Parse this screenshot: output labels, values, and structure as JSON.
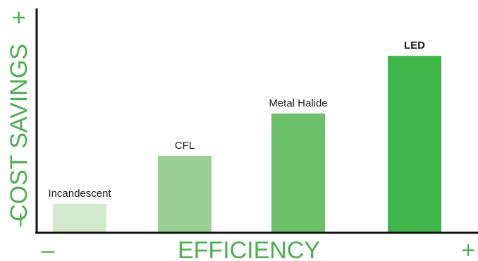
{
  "chart_data": {
    "type": "bar",
    "title": "",
    "xlabel": "EFFICIENCY",
    "ylabel": "COST SAVINGS",
    "x_axis_min_label": "–",
    "x_axis_max_label": "+",
    "y_axis_min_label": "–",
    "y_axis_max_label": "+",
    "categories": [
      "Incandescent",
      "CFL",
      "Metal Halide",
      "LED"
    ],
    "values": [
      15,
      40,
      62,
      92
    ],
    "ylim": [
      0,
      110
    ],
    "grid": false,
    "axis_color": "#4caf50",
    "bar_colors": [
      "#d3eacc",
      "#99cf93",
      "#6cc06a",
      "#3fb54a"
    ],
    "highlight_category": "LED"
  }
}
